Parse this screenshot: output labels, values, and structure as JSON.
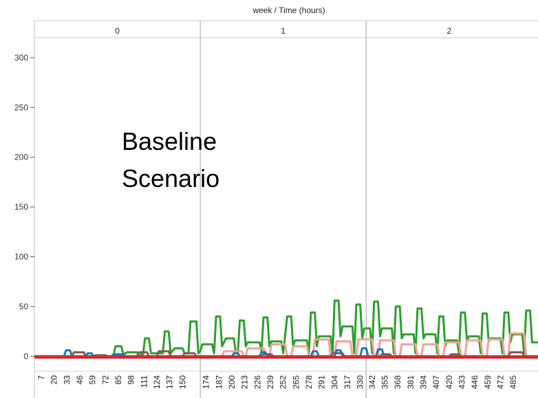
{
  "chart_data": {
    "type": "line",
    "title": "week  /  Time (hours)",
    "annotation": [
      "Baseline",
      "Scenario"
    ],
    "weeks": [
      "0",
      "1",
      "2"
    ],
    "x_ticks": [
      "7",
      "20",
      "33",
      "46",
      "59",
      "72",
      "85",
      "98",
      "111",
      "124",
      "137",
      "150",
      "174",
      "187",
      "200",
      "213",
      "226",
      "239",
      "252",
      "265",
      "278",
      "291",
      "304",
      "317",
      "330",
      "342",
      "355",
      "368",
      "381",
      "394",
      "407",
      "420",
      "433",
      "446",
      "459",
      "472",
      "485"
    ],
    "y_ticks": [
      "0",
      "50",
      "100",
      "150",
      "200",
      "250",
      "300"
    ],
    "ylim": [
      -15,
      320
    ],
    "xlim": [
      0,
      510
    ],
    "week_boundaries": [
      168,
      336
    ],
    "grid": false,
    "series": [
      {
        "color": "#2ca02c",
        "points": [
          [
            0,
            0
          ],
          [
            80,
            0
          ],
          [
            82,
            10
          ],
          [
            88,
            10
          ],
          [
            90,
            2
          ],
          [
            94,
            4
          ],
          [
            104,
            4
          ],
          [
            106,
            0
          ],
          [
            108,
            2
          ],
          [
            110,
            2
          ],
          [
            112,
            18
          ],
          [
            116,
            18
          ],
          [
            118,
            3
          ],
          [
            124,
            3
          ],
          [
            128,
            3
          ],
          [
            130,
            3
          ],
          [
            132,
            25
          ],
          [
            136,
            25
          ],
          [
            138,
            3
          ],
          [
            142,
            8
          ],
          [
            150,
            8
          ],
          [
            152,
            3
          ],
          [
            156,
            3
          ],
          [
            158,
            35
          ],
          [
            164,
            35
          ],
          [
            166,
            3
          ],
          [
            168,
            5
          ],
          [
            170,
            12
          ],
          [
            180,
            12
          ],
          [
            182,
            3
          ],
          [
            184,
            40
          ],
          [
            188,
            40
          ],
          [
            190,
            10
          ],
          [
            194,
            18
          ],
          [
            202,
            18
          ],
          [
            204,
            3
          ],
          [
            206,
            3
          ],
          [
            208,
            36
          ],
          [
            212,
            36
          ],
          [
            214,
            10
          ],
          [
            216,
            14
          ],
          [
            228,
            14
          ],
          [
            230,
            5
          ],
          [
            232,
            39
          ],
          [
            236,
            39
          ],
          [
            238,
            10
          ],
          [
            240,
            15
          ],
          [
            250,
            15
          ],
          [
            252,
            3
          ],
          [
            256,
            40
          ],
          [
            260,
            40
          ],
          [
            262,
            10
          ],
          [
            264,
            16
          ],
          [
            276,
            16
          ],
          [
            278,
            3
          ],
          [
            280,
            44
          ],
          [
            284,
            44
          ],
          [
            286,
            10
          ],
          [
            288,
            20
          ],
          [
            300,
            20
          ],
          [
            302,
            3
          ],
          [
            304,
            56
          ],
          [
            308,
            56
          ],
          [
            310,
            20
          ],
          [
            312,
            30
          ],
          [
            322,
            30
          ],
          [
            324,
            3
          ],
          [
            326,
            52
          ],
          [
            330,
            52
          ],
          [
            332,
            18
          ],
          [
            334,
            28
          ],
          [
            340,
            28
          ],
          [
            342,
            3
          ],
          [
            344,
            55
          ],
          [
            348,
            55
          ],
          [
            350,
            20
          ],
          [
            352,
            28
          ],
          [
            362,
            28
          ],
          [
            364,
            3
          ],
          [
            366,
            50
          ],
          [
            370,
            50
          ],
          [
            372,
            18
          ],
          [
            374,
            22
          ],
          [
            384,
            22
          ],
          [
            386,
            3
          ],
          [
            388,
            48
          ],
          [
            392,
            48
          ],
          [
            394,
            18
          ],
          [
            396,
            22
          ],
          [
            406,
            22
          ],
          [
            408,
            3
          ],
          [
            410,
            40
          ],
          [
            414,
            40
          ],
          [
            416,
            10
          ],
          [
            418,
            16
          ],
          [
            428,
            16
          ],
          [
            430,
            3
          ],
          [
            432,
            44
          ],
          [
            436,
            44
          ],
          [
            438,
            15
          ],
          [
            440,
            20
          ],
          [
            450,
            20
          ],
          [
            452,
            3
          ],
          [
            454,
            43
          ],
          [
            458,
            43
          ],
          [
            460,
            15
          ],
          [
            462,
            18
          ],
          [
            472,
            18
          ],
          [
            474,
            3
          ],
          [
            476,
            44
          ],
          [
            480,
            44
          ],
          [
            482,
            14
          ],
          [
            484,
            22
          ],
          [
            494,
            22
          ],
          [
            496,
            3
          ],
          [
            498,
            46
          ],
          [
            502,
            46
          ],
          [
            504,
            14
          ],
          [
            510,
            14
          ]
        ]
      },
      {
        "color": "#f4a09a",
        "points": [
          [
            0,
            0
          ],
          [
            190,
            0
          ],
          [
            192,
            5
          ],
          [
            210,
            5
          ],
          [
            212,
            0
          ],
          [
            214,
            0
          ],
          [
            216,
            8
          ],
          [
            232,
            8
          ],
          [
            234,
            0
          ],
          [
            238,
            0
          ],
          [
            240,
            12
          ],
          [
            254,
            12
          ],
          [
            256,
            0
          ],
          [
            260,
            0
          ],
          [
            262,
            10
          ],
          [
            276,
            10
          ],
          [
            278,
            0
          ],
          [
            282,
            0
          ],
          [
            284,
            17
          ],
          [
            298,
            17
          ],
          [
            300,
            0
          ],
          [
            304,
            0
          ],
          [
            306,
            15
          ],
          [
            320,
            15
          ],
          [
            322,
            0
          ],
          [
            326,
            0
          ],
          [
            328,
            17
          ],
          [
            342,
            17
          ],
          [
            344,
            0
          ],
          [
            348,
            0
          ],
          [
            350,
            16
          ],
          [
            364,
            16
          ],
          [
            366,
            0
          ],
          [
            370,
            0
          ],
          [
            372,
            12
          ],
          [
            386,
            12
          ],
          [
            388,
            0
          ],
          [
            392,
            0
          ],
          [
            394,
            12
          ],
          [
            408,
            12
          ],
          [
            410,
            0
          ],
          [
            414,
            0
          ],
          [
            416,
            14
          ],
          [
            430,
            14
          ],
          [
            432,
            0
          ],
          [
            436,
            0
          ],
          [
            438,
            16
          ],
          [
            452,
            16
          ],
          [
            454,
            0
          ],
          [
            458,
            0
          ],
          [
            460,
            17
          ],
          [
            474,
            17
          ],
          [
            476,
            0
          ],
          [
            480,
            0
          ],
          [
            482,
            23
          ],
          [
            496,
            23
          ],
          [
            498,
            0
          ],
          [
            510,
            0
          ]
        ]
      },
      {
        "color": "#8c564b",
        "points": [
          [
            0,
            0
          ],
          [
            38,
            0
          ],
          [
            40,
            4
          ],
          [
            50,
            4
          ],
          [
            52,
            0
          ],
          [
            60,
            0
          ],
          [
            62,
            1
          ],
          [
            72,
            1
          ],
          [
            74,
            0
          ],
          [
            104,
            0
          ],
          [
            106,
            4
          ],
          [
            114,
            4
          ],
          [
            116,
            0
          ],
          [
            124,
            0
          ],
          [
            126,
            5
          ],
          [
            136,
            5
          ],
          [
            138,
            0
          ],
          [
            150,
            0
          ],
          [
            152,
            3
          ],
          [
            162,
            3
          ],
          [
            164,
            0
          ],
          [
            230,
            0
          ],
          [
            232,
            2
          ],
          [
            240,
            2
          ],
          [
            242,
            0
          ],
          [
            300,
            0
          ],
          [
            302,
            3
          ],
          [
            312,
            3
          ],
          [
            314,
            0
          ],
          [
            350,
            0
          ],
          [
            352,
            2
          ],
          [
            360,
            2
          ],
          [
            362,
            0
          ],
          [
            420,
            0
          ],
          [
            422,
            2
          ],
          [
            430,
            2
          ],
          [
            432,
            0
          ],
          [
            480,
            0
          ],
          [
            482,
            4
          ],
          [
            494,
            4
          ],
          [
            496,
            0
          ],
          [
            510,
            0
          ]
        ]
      },
      {
        "color": "#1f77b4",
        "points": [
          [
            0,
            0
          ],
          [
            30,
            0
          ],
          [
            32,
            6
          ],
          [
            36,
            6
          ],
          [
            38,
            0
          ],
          [
            52,
            0
          ],
          [
            54,
            3
          ],
          [
            58,
            3
          ],
          [
            60,
            0
          ],
          [
            78,
            0
          ],
          [
            80,
            2
          ],
          [
            90,
            2
          ],
          [
            92,
            0
          ],
          [
            200,
            0
          ],
          [
            202,
            3
          ],
          [
            206,
            3
          ],
          [
            208,
            0
          ],
          [
            228,
            0
          ],
          [
            230,
            4
          ],
          [
            234,
            4
          ],
          [
            236,
            0
          ],
          [
            280,
            0
          ],
          [
            282,
            5
          ],
          [
            286,
            5
          ],
          [
            288,
            0
          ],
          [
            304,
            0
          ],
          [
            306,
            6
          ],
          [
            310,
            6
          ],
          [
            312,
            0
          ],
          [
            330,
            0
          ],
          [
            332,
            8
          ],
          [
            336,
            8
          ],
          [
            338,
            0
          ],
          [
            346,
            0
          ],
          [
            348,
            7
          ],
          [
            352,
            7
          ],
          [
            354,
            0
          ],
          [
            510,
            0
          ]
        ]
      },
      {
        "color": "#d62728",
        "points": [
          [
            0,
            -1
          ],
          [
            510,
            -1
          ]
        ]
      }
    ]
  }
}
